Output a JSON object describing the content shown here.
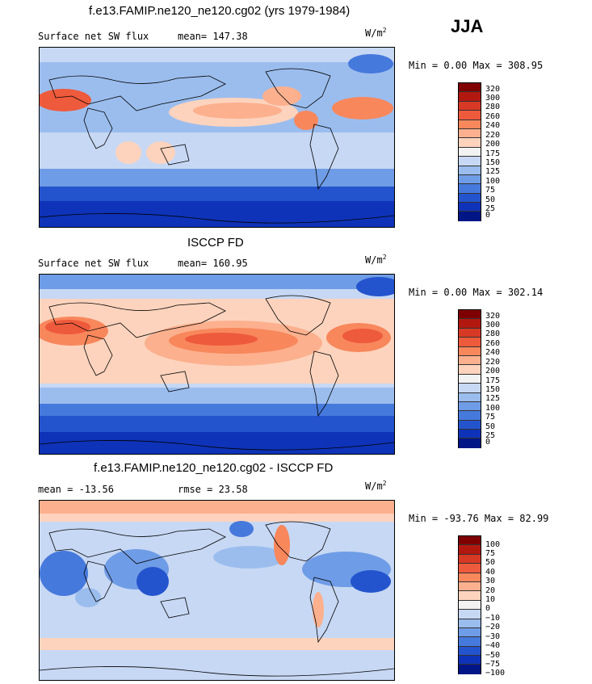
{
  "season": "JJA",
  "units": "W/m²",
  "panels": [
    {
      "title": "f.e13.FAMIP.ne120_ne120.cg02 (yrs 1979-1984)",
      "variable": "Surface net SW flux",
      "stat_left": "mean= 147.38",
      "minmax": "Min =   0.00 Max = 308.95",
      "levels": [
        "320",
        "300",
        "280",
        "260",
        "240",
        "220",
        "200",
        "175",
        "150",
        "125",
        "100",
        "75",
        "50",
        "25",
        "0"
      ]
    },
    {
      "title": "ISCCP FD",
      "variable": "Surface net SW flux",
      "stat_left": "mean= 160.95",
      "minmax": "Min =   0.00 Max = 302.14",
      "levels": [
        "320",
        "300",
        "280",
        "260",
        "240",
        "220",
        "200",
        "175",
        "150",
        "125",
        "100",
        "75",
        "50",
        "25",
        "0"
      ]
    },
    {
      "title": "f.e13.FAMIP.ne120_ne120.cg02 - ISCCP FD",
      "variable": "mean = -13.56",
      "stat_left": "rmse =  23.58",
      "minmax": "Min = -93.76 Max =  82.99",
      "levels": [
        "100",
        "75",
        "50",
        "40",
        "30",
        "20",
        "10",
        "0",
        "−10",
        "−20",
        "−30",
        "−40",
        "−50",
        "−75",
        "−100"
      ]
    }
  ],
  "colors": [
    "#7f0000",
    "#b2180f",
    "#d73925",
    "#ee5a3c",
    "#f8875c",
    "#fcb08e",
    "#fdd3bd",
    "#f2f2f2",
    "#c7d8f4",
    "#9bbdee",
    "#6f9ce6",
    "#4679dc",
    "#2454cd",
    "#0e33b8",
    "#001586"
  ]
}
